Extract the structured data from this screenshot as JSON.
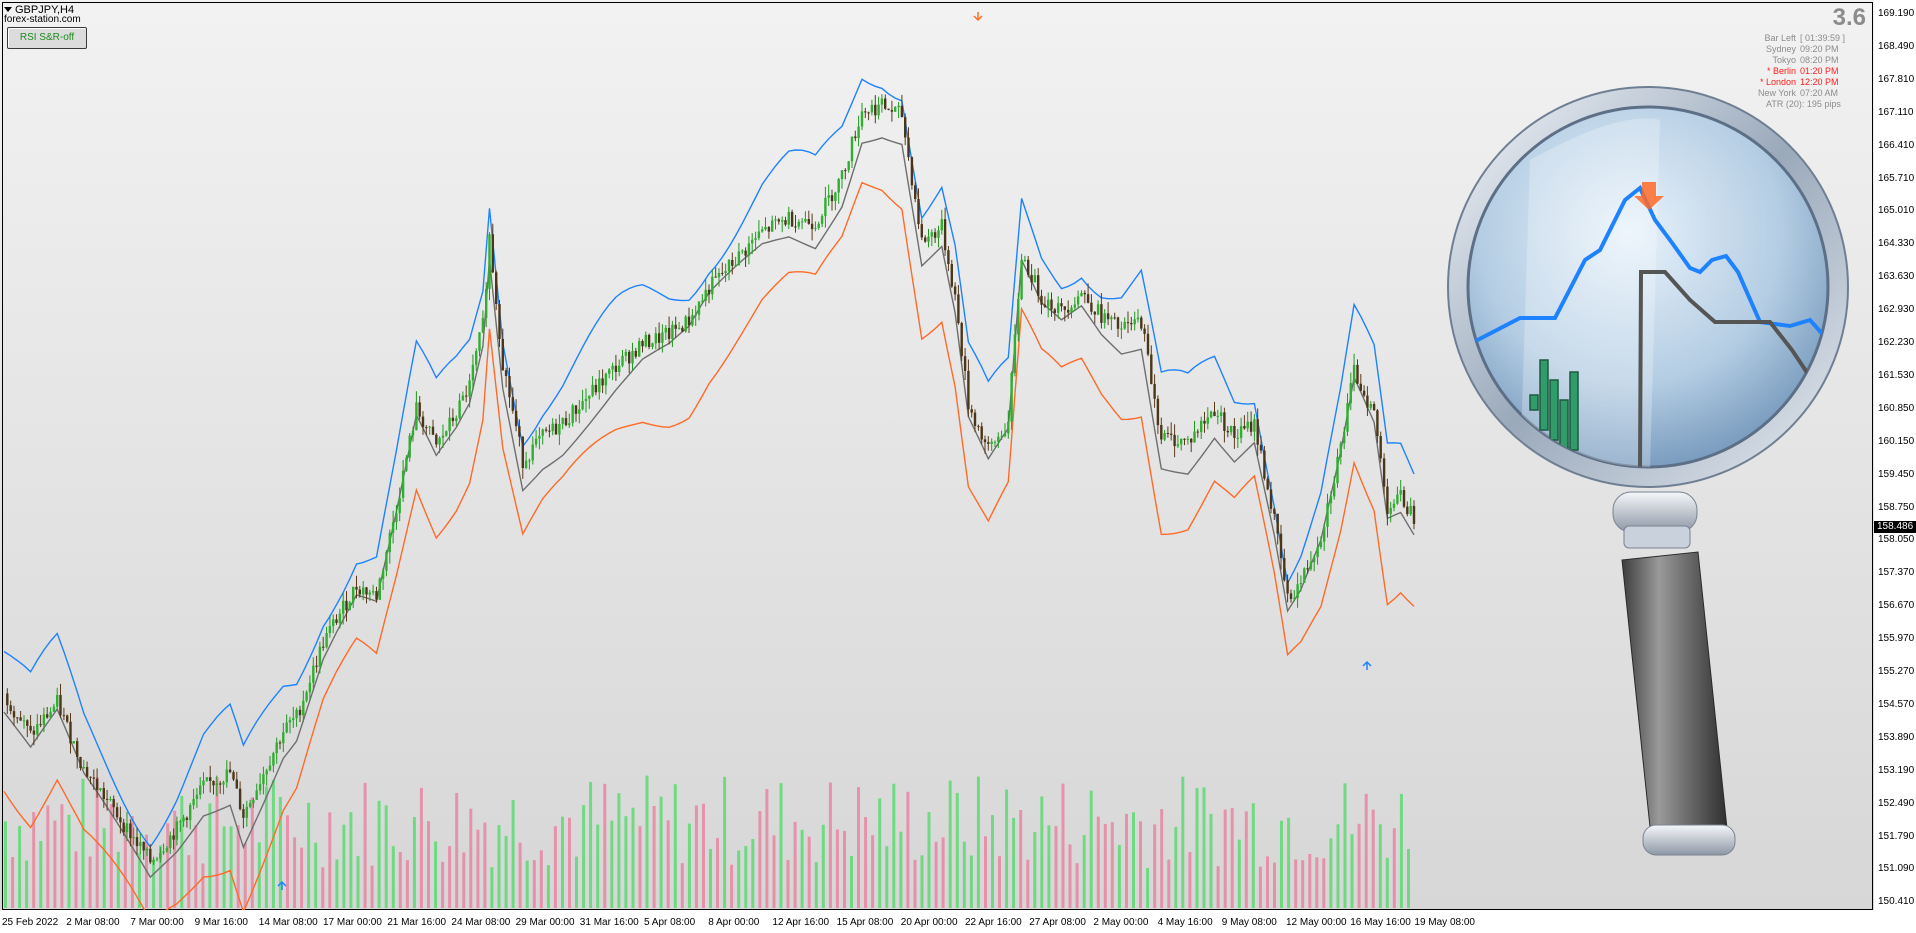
{
  "window": {
    "symbol": "GBPJPY,H4",
    "site": "forex-station.com",
    "rsi_button": "RSI S&R-off"
  },
  "info_panel": {
    "value": "3.6",
    "rows": [
      {
        "key": "Bar Left",
        "value": "[ 01:39:59 ]",
        "color": "grey"
      },
      {
        "key": "Sydney",
        "value": "09:20 PM",
        "color": "grey"
      },
      {
        "key": "Tokyo",
        "value": "08:20 PM",
        "color": "grey"
      },
      {
        "key": "* Berlin",
        "value": "01:20 PM",
        "color": "red"
      },
      {
        "key": "* London",
        "value": "12:20 PM",
        "color": "red"
      },
      {
        "key": "New York",
        "value": "07:20 AM",
        "color": "grey"
      }
    ],
    "atr": "ATR (20): 195 pips"
  },
  "price_axis": {
    "ticks": [
      "169.190",
      "168.490",
      "167.810",
      "167.110",
      "166.410",
      "165.710",
      "165.010",
      "164.330",
      "163.630",
      "162.930",
      "162.230",
      "161.530",
      "160.850",
      "160.150",
      "159.450",
      "158.750",
      "158.050",
      "157.370",
      "156.670",
      "155.970",
      "155.270",
      "154.570",
      "153.890",
      "153.190",
      "152.490",
      "151.790",
      "151.090",
      "150.410"
    ],
    "last_price": "158.486"
  },
  "time_axis": {
    "ticks": [
      "25 Feb 2022",
      "2 Mar 08:00",
      "7 Mar 00:00",
      "9 Mar 16:00",
      "14 Mar 08:00",
      "17 Mar 00:00",
      "21 Mar 16:00",
      "24 Mar 08:00",
      "29 Mar 00:00",
      "31 Mar 16:00",
      "5 Apr 08:00",
      "8 Apr 00:00",
      "12 Apr 16:00",
      "15 Apr 08:00",
      "20 Apr 00:00",
      "22 Apr 16:00",
      "27 Apr 08:00",
      "2 May 00:00",
      "4 May 16:00",
      "9 May 08:00",
      "12 May 00:00",
      "16 May 16:00",
      "19 May 08:00"
    ]
  },
  "colors": {
    "bull": "#1e9b1e",
    "bear": "#5a3a1a",
    "upper_band": "#1e82ff",
    "lower_band": "#ff6a28",
    "mid_band": "#6e6e6e",
    "vol_up": "#4cd964",
    "vol_down": "#e87a9a",
    "arrow_up": "#1e82ff",
    "arrow_down": "#ff6a28"
  },
  "icons": {
    "magnifier": "magnifying-glass-icon",
    "buy_arrow": "arrow-up-icon",
    "sell_arrow": "arrow-down-icon"
  },
  "chart_data": {
    "type": "candlestick",
    "ylim": [
      150.2,
      169.5
    ],
    "series_close_path": [
      [
        0,
        154.8
      ],
      [
        8,
        153.9
      ],
      [
        16,
        154.6
      ],
      [
        24,
        153.2
      ],
      [
        32,
        152.4
      ],
      [
        40,
        151.6
      ],
      [
        44,
        151.2
      ],
      [
        52,
        151.9
      ],
      [
        60,
        152.8
      ],
      [
        68,
        153.1
      ],
      [
        72,
        152.2
      ],
      [
        80,
        153.4
      ],
      [
        84,
        154.0
      ],
      [
        88,
        154.3
      ],
      [
        92,
        155.1
      ],
      [
        96,
        155.9
      ],
      [
        100,
        156.4
      ],
      [
        106,
        157.1
      ],
      [
        112,
        156.9
      ],
      [
        118,
        158.8
      ],
      [
        124,
        160.9
      ],
      [
        130,
        160.1
      ],
      [
        136,
        160.8
      ],
      [
        140,
        161.4
      ],
      [
        144,
        162.7
      ],
      [
        146,
        164.6
      ],
      [
        150,
        161.9
      ],
      [
        156,
        159.8
      ],
      [
        162,
        160.3
      ],
      [
        168,
        160.6
      ],
      [
        176,
        161.2
      ],
      [
        184,
        161.8
      ],
      [
        192,
        162.3
      ],
      [
        200,
        162.5
      ],
      [
        206,
        162.8
      ],
      [
        212,
        163.5
      ],
      [
        220,
        164.1
      ],
      [
        228,
        164.7
      ],
      [
        236,
        165.0
      ],
      [
        244,
        164.9
      ],
      [
        252,
        165.9
      ],
      [
        258,
        167.3
      ],
      [
        264,
        167.4
      ],
      [
        270,
        167.2
      ],
      [
        276,
        164.5
      ],
      [
        282,
        164.8
      ],
      [
        286,
        163.3
      ],
      [
        290,
        161.0
      ],
      [
        296,
        160.0
      ],
      [
        302,
        160.6
      ],
      [
        306,
        164.2
      ],
      [
        312,
        163.3
      ],
      [
        318,
        163.0
      ],
      [
        324,
        163.4
      ],
      [
        330,
        162.9
      ],
      [
        336,
        162.6
      ],
      [
        342,
        162.8
      ],
      [
        348,
        160.3
      ],
      [
        356,
        160.2
      ],
      [
        364,
        160.9
      ],
      [
        370,
        160.3
      ],
      [
        376,
        160.6
      ],
      [
        382,
        158.5
      ],
      [
        386,
        156.8
      ],
      [
        390,
        157.2
      ],
      [
        396,
        158.2
      ],
      [
        402,
        160.1
      ],
      [
        406,
        161.7
      ],
      [
        412,
        160.8
      ],
      [
        416,
        158.8
      ],
      [
        420,
        159.0
      ],
      [
        424,
        158.6
      ]
    ],
    "volume_bars": 200
  }
}
